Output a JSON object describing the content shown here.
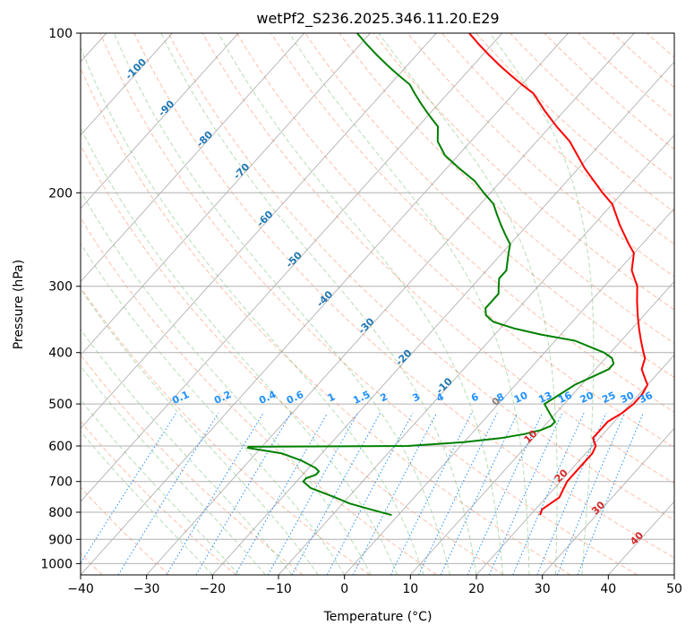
{
  "chart_data": {
    "type": "line",
    "diagram": "skew-T log-P",
    "title": "wetPf2_S236.2025.346.11.20.E29",
    "xlabel": "Temperature (°C)",
    "ylabel": "Pressure (hPa)",
    "xlim": [
      -40,
      50
    ],
    "ylim": [
      1050,
      100
    ],
    "y_scale": "log",
    "grid": true,
    "x_ticks": [
      "−40",
      "−30",
      "−20",
      "−10",
      "0",
      "10",
      "20",
      "30",
      "40",
      "50"
    ],
    "y_ticks": [
      "100",
      "200",
      "300",
      "400",
      "500",
      "600",
      "700",
      "800",
      "900",
      "1000"
    ],
    "colors": {
      "temperature": "#ff0000",
      "dewpoint": "#008000",
      "dry_adiabats": "#ff7f50",
      "moist_adiabats": "#2ca02c",
      "mixing_ratio": "#1e90ff",
      "isotherms": "#808080",
      "isotherm_labels": "#1f77b4",
      "warm_isotherm_labels": "#d62728",
      "zero_isotherm": "#808080",
      "special_isotherm": "#d2b48c"
    },
    "series": [
      {
        "key": "temperature",
        "pressure": [
          810,
          790,
          770,
          750,
          700,
          650,
          620,
          600,
          580,
          560,
          540,
          520,
          500,
          480,
          460,
          450,
          430,
          410,
          400,
          380,
          360,
          340,
          320,
          300,
          280,
          260,
          250,
          230,
          210,
          200,
          180,
          160,
          150,
          140,
          130,
          125,
          120,
          115,
          110,
          105,
          100
        ],
        "temperature": [
          21.5,
          21,
          21.5,
          22,
          21,
          21,
          21,
          20.5,
          19,
          19,
          19,
          20,
          20.5,
          20.5,
          20,
          19,
          17,
          16,
          15,
          13,
          11,
          9,
          7,
          5,
          2,
          0,
          -2,
          -6,
          -10,
          -13,
          -19,
          -25,
          -29,
          -33,
          -37,
          -40,
          -43,
          -46,
          -49,
          -52,
          -55
        ]
      },
      {
        "key": "dewpoint",
        "pressure": [
          810,
          790,
          770,
          750,
          720,
          700,
          690,
          680,
          670,
          660,
          640,
          620,
          605,
          602,
          600,
          590,
          580,
          570,
          560,
          550,
          540,
          530,
          520,
          500,
          480,
          460,
          440,
          430,
          420,
          410,
          400,
          380,
          370,
          360,
          350,
          340,
          330,
          320,
          310,
          300,
          290,
          280,
          270,
          260,
          250,
          240,
          230,
          220,
          210,
          200,
          190,
          180,
          170,
          160,
          150,
          145,
          140,
          135,
          130,
          125,
          120,
          115,
          110,
          105,
          100
        ],
        "temperature": [
          -1,
          -5,
          -9,
          -12,
          -17,
          -19,
          -19,
          -18,
          -18,
          -19,
          -22,
          -26,
          -32,
          -32,
          -8,
          0,
          5,
          8,
          10,
          11,
          11,
          10,
          9,
          7,
          8,
          9,
          11,
          12,
          12,
          11,
          9,
          3,
          -3,
          -8,
          -12,
          -14,
          -15,
          -15,
          -15,
          -16,
          -17,
          -17,
          -18,
          -19,
          -20,
          -22,
          -24,
          -26,
          -28,
          -31,
          -34,
          -38,
          -42,
          -45,
          -47,
          -49,
          -51,
          -53,
          -55,
          -57,
          -60,
          -63,
          -66,
          -69,
          -72
        ]
      }
    ],
    "mixing_ratio_labels": [
      "0.1",
      "0.2",
      "0.4",
      "0.6",
      "1",
      "1.5",
      "2",
      "3",
      "4",
      "6",
      "8",
      "10",
      "13",
      "16",
      "20",
      "25",
      "30",
      "36"
    ],
    "isotherm_labels": [
      "-100",
      "-90",
      "-80",
      "-70",
      "-60",
      "-50",
      "-40",
      "-30",
      "-20",
      "-10",
      "0",
      "10",
      "20",
      "30",
      "40"
    ]
  }
}
